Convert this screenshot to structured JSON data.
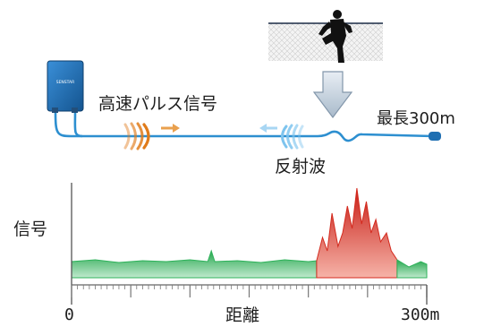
{
  "labels": {
    "pulse": "高速パルス信号",
    "reflected": "反射波",
    "max_length": "最長300m",
    "signal_axis": "信号",
    "distance_axis": "距離",
    "x_start": "0",
    "x_end": "300m"
  },
  "device": {
    "brand": "SENSTAR"
  },
  "colors": {
    "cable": "#2d8fd0",
    "pulse_waves": "#e07b1a",
    "reflected_waves": "#7ec4ee",
    "signal_fill": "#2eb25a",
    "intrusion_fill": "#d42a1e",
    "arrow": "#b8c7d6",
    "device": "#1d6fb8"
  },
  "chart_data": {
    "type": "area",
    "xlabel": "距離",
    "ylabel": "信号",
    "xlim": [
      0,
      300
    ],
    "x_tick_labels": [
      "0",
      "300m"
    ],
    "intrusion_region": [
      207,
      275
    ],
    "series": [
      {
        "role": "background-noise",
        "x": [
          0,
          20,
          40,
          60,
          80,
          100,
          115,
          118,
          121,
          140,
          160,
          180,
          200,
          207
        ],
        "y": [
          0.18,
          0.2,
          0.17,
          0.19,
          0.18,
          0.2,
          0.18,
          0.3,
          0.18,
          0.19,
          0.17,
          0.2,
          0.18,
          0.19
        ]
      },
      {
        "role": "intrusion-signal",
        "x": [
          207,
          212,
          216,
          220,
          225,
          229,
          233,
          237,
          241,
          245,
          249,
          253,
          257,
          261,
          266,
          270,
          275
        ],
        "y": [
          0.19,
          0.45,
          0.3,
          0.72,
          0.35,
          0.5,
          0.8,
          0.55,
          1.0,
          0.6,
          0.85,
          0.5,
          0.65,
          0.4,
          0.5,
          0.3,
          0.2
        ]
      },
      {
        "role": "background-noise",
        "x": [
          275,
          285,
          295,
          300
        ],
        "y": [
          0.2,
          0.12,
          0.18,
          0.15
        ]
      }
    ]
  }
}
